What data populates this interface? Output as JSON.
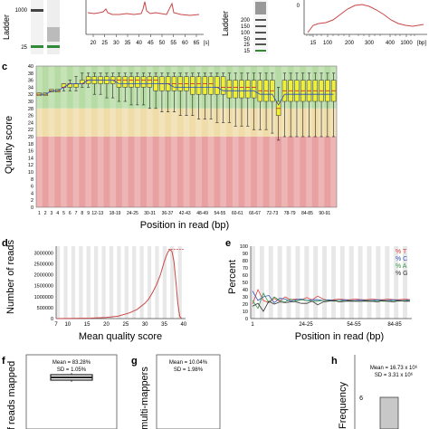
{
  "panels": {
    "a": {
      "ladder_label": "Ladder",
      "ladder_ticks": [
        "1000",
        "25"
      ],
      "x_ticks": [
        "20",
        "25",
        "30",
        "35",
        "40",
        "45",
        "50",
        "55",
        "60",
        "65"
      ],
      "x_unit": "[s]"
    },
    "b": {
      "ladder_label": "Ladder",
      "ladder_ticks": [
        "200",
        "150",
        "100",
        "50",
        "25",
        "15"
      ],
      "y_ticks": [
        "0"
      ],
      "x_ticks": [
        "15",
        "100",
        "200",
        "300",
        "400",
        "1000",
        "[bp]"
      ]
    },
    "c": {
      "letter": "c"
    },
    "d": {
      "letter": "d"
    },
    "e": {
      "letter": "e"
    },
    "f": {
      "letter": "f",
      "ylabel": "of reads mapped",
      "mean_text": "Mean = 83.28%",
      "sd_text": "SD = 1.05%"
    },
    "g": {
      "letter": "g",
      "ylabel": "multi-mappers",
      "mean_text": "Mean = 10.04%",
      "sd_text": "SD = 1.98%"
    },
    "h": {
      "letter": "h",
      "ylabel": "Frequency",
      "mean_text": "Mean = 16.73 x 10⁶",
      "sd_text": "SD = 3.31 x 10⁶",
      "bar_label": "6"
    }
  },
  "chart_data": [
    {
      "panel": "c",
      "type": "box",
      "xlabel": "Position in read (bp)",
      "ylabel": "Quality score",
      "ylim": [
        0,
        40
      ],
      "y_ticks": [
        0,
        2,
        4,
        6,
        8,
        10,
        12,
        14,
        16,
        18,
        20,
        22,
        24,
        26,
        28,
        30,
        32,
        34,
        36,
        38,
        40
      ],
      "x_tick_labels": [
        "1",
        "2",
        "3",
        "4",
        "5",
        "6",
        "7",
        "8",
        "9",
        "12-13",
        "18-19",
        "24-25",
        "30-31",
        "36-37",
        "42-43",
        "48-49",
        "54-55",
        "60-61",
        "66-67",
        "72-73",
        "78-79",
        "84-85",
        "90-91"
      ],
      "zones": [
        {
          "from": 0,
          "to": 20,
          "color": "#e8a0a0"
        },
        {
          "from": 20,
          "to": 28,
          "color": "#efdca8"
        },
        {
          "from": 28,
          "to": 40,
          "color": "#b7dba4"
        }
      ],
      "boxes": [
        {
          "q1": 32,
          "q3": 32,
          "med": 32,
          "lo": 32,
          "hi": 32,
          "mean": 32
        },
        {
          "q1": 32,
          "q3": 32,
          "med": 32,
          "lo": 32,
          "hi": 32,
          "mean": 32
        },
        {
          "q1": 33,
          "q3": 33,
          "med": 33,
          "lo": 33,
          "hi": 33,
          "mean": 33
        },
        {
          "q1": 33,
          "q3": 33,
          "med": 33,
          "lo": 33,
          "hi": 33,
          "mean": 33
        },
        {
          "q1": 34,
          "q3": 35,
          "med": 34,
          "lo": 33,
          "hi": 35,
          "mean": 34
        },
        {
          "q1": 34,
          "q3": 35,
          "med": 35,
          "lo": 33,
          "hi": 36,
          "mean": 35
        },
        {
          "q1": 34,
          "q3": 35,
          "med": 35,
          "lo": 33,
          "hi": 37,
          "mean": 35
        },
        {
          "q1": 35,
          "q3": 36,
          "med": 35,
          "lo": 34,
          "hi": 38,
          "mean": 35
        },
        {
          "q1": 35,
          "q3": 37,
          "med": 36,
          "lo": 34,
          "hi": 38,
          "mean": 36
        },
        {
          "q1": 35,
          "q3": 37,
          "med": 36,
          "lo": 32,
          "hi": 38,
          "mean": 36
        },
        {
          "q1": 35,
          "q3": 37,
          "med": 36,
          "lo": 32,
          "hi": 38,
          "mean": 36
        },
        {
          "q1": 35,
          "q3": 37,
          "med": 36,
          "lo": 31,
          "hi": 38,
          "mean": 36
        },
        {
          "q1": 35,
          "q3": 37,
          "med": 36,
          "lo": 31,
          "hi": 38,
          "mean": 36
        },
        {
          "q1": 34,
          "q3": 37,
          "med": 36,
          "lo": 30,
          "hi": 38,
          "mean": 35
        },
        {
          "q1": 34,
          "q3": 37,
          "med": 36,
          "lo": 30,
          "hi": 38,
          "mean": 35
        },
        {
          "q1": 34,
          "q3": 37,
          "med": 36,
          "lo": 29,
          "hi": 38,
          "mean": 35
        },
        {
          "q1": 34,
          "q3": 37,
          "med": 36,
          "lo": 29,
          "hi": 38,
          "mean": 35
        },
        {
          "q1": 34,
          "q3": 37,
          "med": 36,
          "lo": 29,
          "hi": 38,
          "mean": 35
        },
        {
          "q1": 34,
          "q3": 37,
          "med": 36,
          "lo": 28,
          "hi": 38,
          "mean": 35
        },
        {
          "q1": 33,
          "q3": 37,
          "med": 36,
          "lo": 28,
          "hi": 38,
          "mean": 35
        },
        {
          "q1": 33,
          "q3": 37,
          "med": 35,
          "lo": 27,
          "hi": 38,
          "mean": 35
        },
        {
          "q1": 33,
          "q3": 37,
          "med": 35,
          "lo": 27,
          "hi": 38,
          "mean": 35
        },
        {
          "q1": 33,
          "q3": 37,
          "med": 35,
          "lo": 27,
          "hi": 38,
          "mean": 34
        },
        {
          "q1": 33,
          "q3": 37,
          "med": 35,
          "lo": 26,
          "hi": 38,
          "mean": 34
        },
        {
          "q1": 33,
          "q3": 37,
          "med": 35,
          "lo": 26,
          "hi": 38,
          "mean": 34
        },
        {
          "q1": 32,
          "q3": 37,
          "med": 35,
          "lo": 26,
          "hi": 38,
          "mean": 34
        },
        {
          "q1": 32,
          "q3": 37,
          "med": 35,
          "lo": 25,
          "hi": 38,
          "mean": 34
        },
        {
          "q1": 32,
          "q3": 37,
          "med": 35,
          "lo": 25,
          "hi": 38,
          "mean": 34
        },
        {
          "q1": 32,
          "q3": 37,
          "med": 35,
          "lo": 25,
          "hi": 38,
          "mean": 34
        },
        {
          "q1": 32,
          "q3": 37,
          "med": 34,
          "lo": 24,
          "hi": 38,
          "mean": 34
        },
        {
          "q1": 32,
          "q3": 37,
          "med": 34,
          "lo": 24,
          "hi": 38,
          "mean": 33
        },
        {
          "q1": 31,
          "q3": 36,
          "med": 34,
          "lo": 24,
          "hi": 38,
          "mean": 33
        },
        {
          "q1": 31,
          "q3": 36,
          "med": 34,
          "lo": 23,
          "hi": 38,
          "mean": 33
        },
        {
          "q1": 31,
          "q3": 36,
          "med": 34,
          "lo": 23,
          "hi": 38,
          "mean": 33
        },
        {
          "q1": 31,
          "q3": 36,
          "med": 34,
          "lo": 23,
          "hi": 38,
          "mean": 33
        },
        {
          "q1": 31,
          "q3": 36,
          "med": 34,
          "lo": 22,
          "hi": 38,
          "mean": 33
        },
        {
          "q1": 30,
          "q3": 36,
          "med": 33,
          "lo": 22,
          "hi": 38,
          "mean": 32
        },
        {
          "q1": 30,
          "q3": 36,
          "med": 33,
          "lo": 22,
          "hi": 38,
          "mean": 32
        },
        {
          "q1": 30,
          "q3": 36,
          "med": 33,
          "lo": 21,
          "hi": 38,
          "mean": 32
        },
        {
          "q1": 26,
          "q3": 30,
          "med": 28,
          "lo": 19,
          "hi": 34,
          "mean": 29
        },
        {
          "q1": 30,
          "q3": 36,
          "med": 33,
          "lo": 20,
          "hi": 38,
          "mean": 32
        },
        {
          "q1": 30,
          "q3": 36,
          "med": 33,
          "lo": 20,
          "hi": 38,
          "mean": 32
        },
        {
          "q1": 30,
          "q3": 36,
          "med": 33,
          "lo": 20,
          "hi": 38,
          "mean": 32
        },
        {
          "q1": 30,
          "q3": 36,
          "med": 33,
          "lo": 20,
          "hi": 38,
          "mean": 32
        },
        {
          "q1": 30,
          "q3": 36,
          "med": 33,
          "lo": 20,
          "hi": 38,
          "mean": 32
        },
        {
          "q1": 30,
          "q3": 36,
          "med": 33,
          "lo": 20,
          "hi": 38,
          "mean": 32
        },
        {
          "q1": 30,
          "q3": 36,
          "med": 33,
          "lo": 20,
          "hi": 38,
          "mean": 32
        },
        {
          "q1": 30,
          "q3": 36,
          "med": 33,
          "lo": 20,
          "hi": 38,
          "mean": 32
        },
        {
          "q1": 30,
          "q3": 36,
          "med": 33,
          "lo": 20,
          "hi": 38,
          "mean": 32
        }
      ]
    },
    {
      "panel": "d",
      "type": "line",
      "xlabel": "Mean quality score",
      "ylabel": "Number of reads",
      "xlim": [
        7,
        40.5
      ],
      "ylim": [
        0,
        3300000
      ],
      "x_ticks": [
        7,
        10,
        15,
        20,
        25,
        30,
        35,
        40
      ],
      "y_ticks": [
        0,
        500000,
        1000000,
        1500000,
        2000000,
        2500000,
        3000000
      ],
      "y_tick_labels": [
        "0",
        "500000",
        "1000000",
        "1500000",
        "2000000",
        "2500000",
        "3000000"
      ],
      "x": [
        7,
        12,
        16,
        20,
        23,
        26,
        28,
        30,
        31,
        32,
        33,
        34,
        35,
        35.5,
        36,
        36.5,
        37,
        37.5,
        38,
        38.5,
        39,
        39.5
      ],
      "y": [
        0,
        8000,
        20000,
        50000,
        110000,
        260000,
        420000,
        700000,
        900000,
        1200000,
        1550000,
        2000000,
        2600000,
        2850000,
        3050000,
        3150000,
        3050000,
        2600000,
        1700000,
        700000,
        100000,
        0
      ]
    },
    {
      "panel": "e",
      "type": "line",
      "xlabel": "Position in read (bp)",
      "ylabel": "Percent",
      "ylim": [
        0,
        100
      ],
      "y_ticks": [
        0,
        10,
        20,
        30,
        40,
        50,
        60,
        70,
        80,
        90,
        100
      ],
      "x_tick_labels": [
        "1",
        "24-25",
        "54-55",
        "84-85"
      ],
      "series": [
        {
          "name": "% T",
          "color": "#d94040",
          "values": [
            20,
            40,
            25,
            22,
            28,
            24,
            30,
            26,
            27,
            26,
            29,
            26,
            31,
            27,
            25,
            26,
            27,
            26,
            26,
            27,
            26,
            26,
            27,
            26,
            26,
            27,
            26,
            26,
            27,
            26
          ]
        },
        {
          "name": "% C",
          "color": "#3555b8",
          "values": [
            38,
            25,
            30,
            32,
            22,
            28,
            27,
            24,
            26,
            27,
            25,
            26,
            26,
            25,
            26,
            25,
            25,
            26,
            25,
            25,
            26,
            25,
            25,
            26,
            25,
            25,
            26,
            25,
            25,
            26
          ]
        },
        {
          "name": "% A",
          "color": "#3b9a4e",
          "values": [
            25,
            14,
            35,
            22,
            30,
            25,
            23,
            27,
            24,
            26,
            25,
            24,
            24,
            25,
            25,
            24,
            25,
            24,
            25,
            24,
            24,
            25,
            24,
            25,
            24,
            24,
            25,
            24,
            25,
            24
          ]
        },
        {
          "name": "% G",
          "color": "#333333",
          "values": [
            17,
            21,
            10,
            24,
            20,
            23,
            22,
            23,
            23,
            21,
            21,
            24,
            19,
            23,
            24,
            25,
            23,
            24,
            24,
            24,
            24,
            24,
            24,
            23,
            25,
            24,
            23,
            25,
            24,
            24
          ]
        }
      ]
    },
    {
      "panel": "f",
      "type": "box",
      "values": {
        "q1": 82.8,
        "q3": 83.8,
        "med": 83.3,
        "lo": 82.5,
        "hi": 84.2
      },
      "ylim": [
        78,
        88
      ]
    },
    {
      "panel": "h",
      "type": "bar",
      "values": [
        6
      ]
    }
  ],
  "colors": {
    "trace": "#c84848",
    "green_band": "#2f8a3a",
    "box_fill": "#efef3a"
  }
}
